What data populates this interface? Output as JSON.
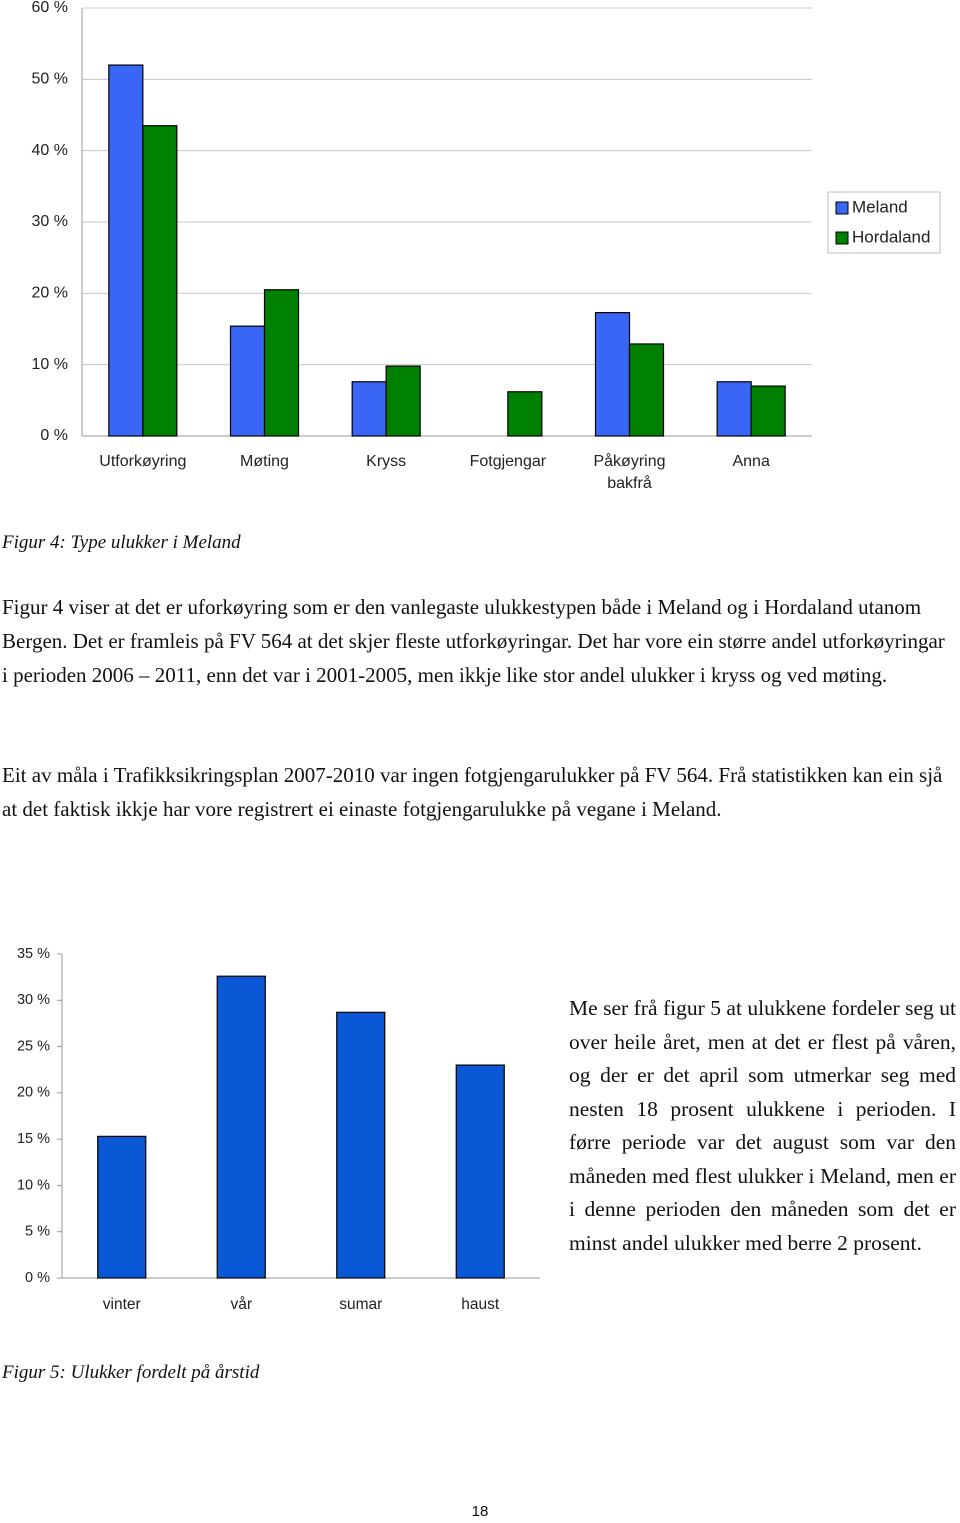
{
  "chart_data": [
    {
      "type": "bar",
      "categories": [
        "Utforkøyring",
        "Møting",
        "Kryss",
        "Fotgjengar",
        "Påkøyring bakfrå",
        "Anna"
      ],
      "series": [
        {
          "name": "Meland",
          "color": "#3a66f5",
          "values": [
            52,
            15.4,
            7.6,
            0,
            17.3,
            7.6
          ]
        },
        {
          "name": "Hordaland",
          "color": "#008000",
          "values": [
            43.5,
            20.5,
            9.8,
            6.2,
            12.9,
            7.0
          ]
        }
      ],
      "ylim": [
        0,
        60
      ],
      "yticks": [
        {
          "value": 0,
          "label": "0 %"
        },
        {
          "value": 10,
          "label": "10 %"
        },
        {
          "value": 20,
          "label": "20 %"
        },
        {
          "value": 30,
          "label": "30 %"
        },
        {
          "value": 40,
          "label": "40 %"
        },
        {
          "value": 50,
          "label": "50 %"
        },
        {
          "value": 60,
          "label": "60 %"
        }
      ],
      "grid": true,
      "legend": "right"
    },
    {
      "type": "bar",
      "categories": [
        "vinter",
        "vår",
        "sumar",
        "haust"
      ],
      "values": [
        15.3,
        32.6,
        28.7,
        23.0
      ],
      "color": "#0a58d6",
      "ylim": [
        0,
        35
      ],
      "yticks": [
        {
          "value": 0,
          "label": "0 %"
        },
        {
          "value": 5,
          "label": "5 %"
        },
        {
          "value": 10,
          "label": "10 %"
        },
        {
          "value": 15,
          "label": "15 %"
        },
        {
          "value": 20,
          "label": "20 %"
        },
        {
          "value": 25,
          "label": "25 %"
        },
        {
          "value": 30,
          "label": "30 %"
        },
        {
          "value": 35,
          "label": "35 %"
        }
      ],
      "grid": false
    }
  ],
  "document": {
    "caption_1": "Figur 4: Type ulukker i Meland",
    "paragraphs": [
      "Figur 4 viser at det er uforkøyring som er den vanlegaste ulukkestypen både i Meland og i Hordaland utanom Bergen. Det er framleis på FV 564 at det skjer fleste utforkøyringar. Det har vore ein større andel utforkøyringar i perioden 2006 – 2011, enn det var i 2001-2005, men ikkje like stor andel ulukker i kryss og ved møting.",
      "Eit av måla i Trafikksikringsplan 2007-2010 var ingen fotgjengarulukker på FV 564. Frå statistikken kan ein sjå at det faktisk ikkje har vore registrert ei einaste fotgjengarulukke på vegane i Meland."
    ],
    "side_text": "Me ser frå figur 5 at ulukkene fordeler seg ut over heile året, men at det er flest på våren, og der er det april som utmerkar seg med nesten 18 prosent ulukkene i perioden. I førre periode var det august som var den måneden med flest ulukker i Meland, men er i denne perioden den måneden som det er minst andel ulukker med berre 2 prosent.",
    "caption_2": "Figur 5: Ulukker fordelt på årstid",
    "page_number": "18"
  }
}
